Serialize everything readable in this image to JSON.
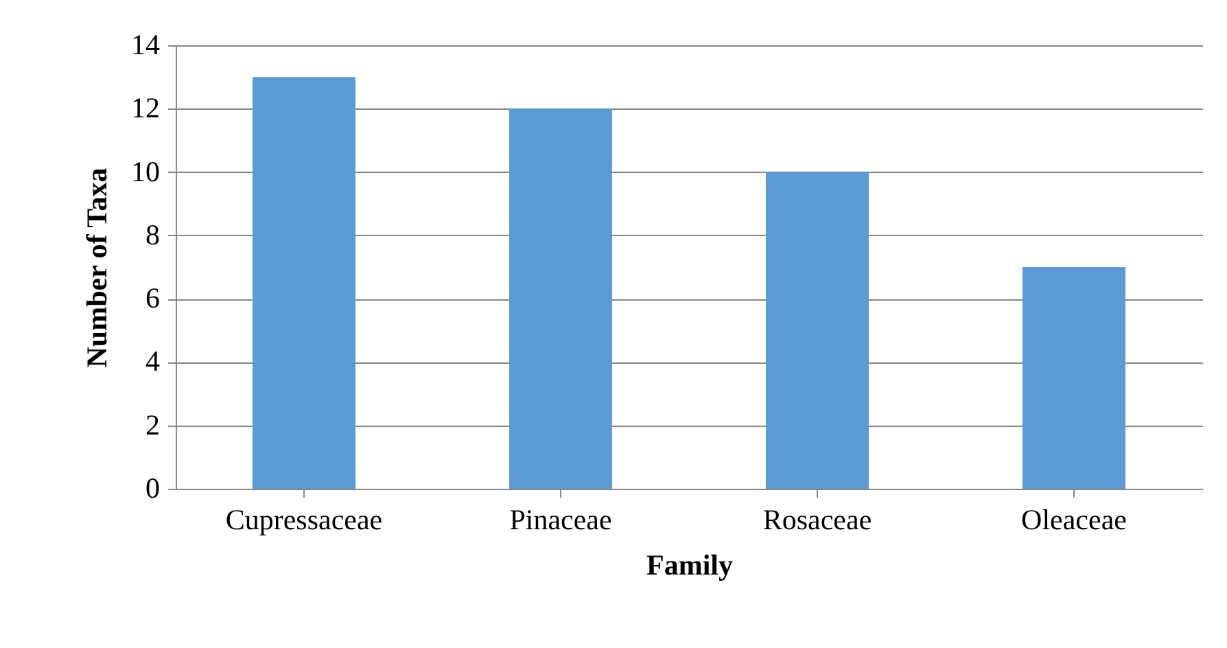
{
  "chart_data": {
    "type": "bar",
    "xlabel": "Family",
    "ylabel": "Number of Taxa",
    "categories": [
      "Cupressaceae",
      "Pinaceae",
      "Rosaceae",
      "Oleaceae"
    ],
    "values": [
      13,
      12,
      10,
      7
    ],
    "color": "#5b9bd5",
    "ylim": [
      0,
      14
    ],
    "yticks": [
      0,
      2,
      4,
      6,
      8,
      10,
      12,
      14
    ],
    "grid": "y"
  }
}
